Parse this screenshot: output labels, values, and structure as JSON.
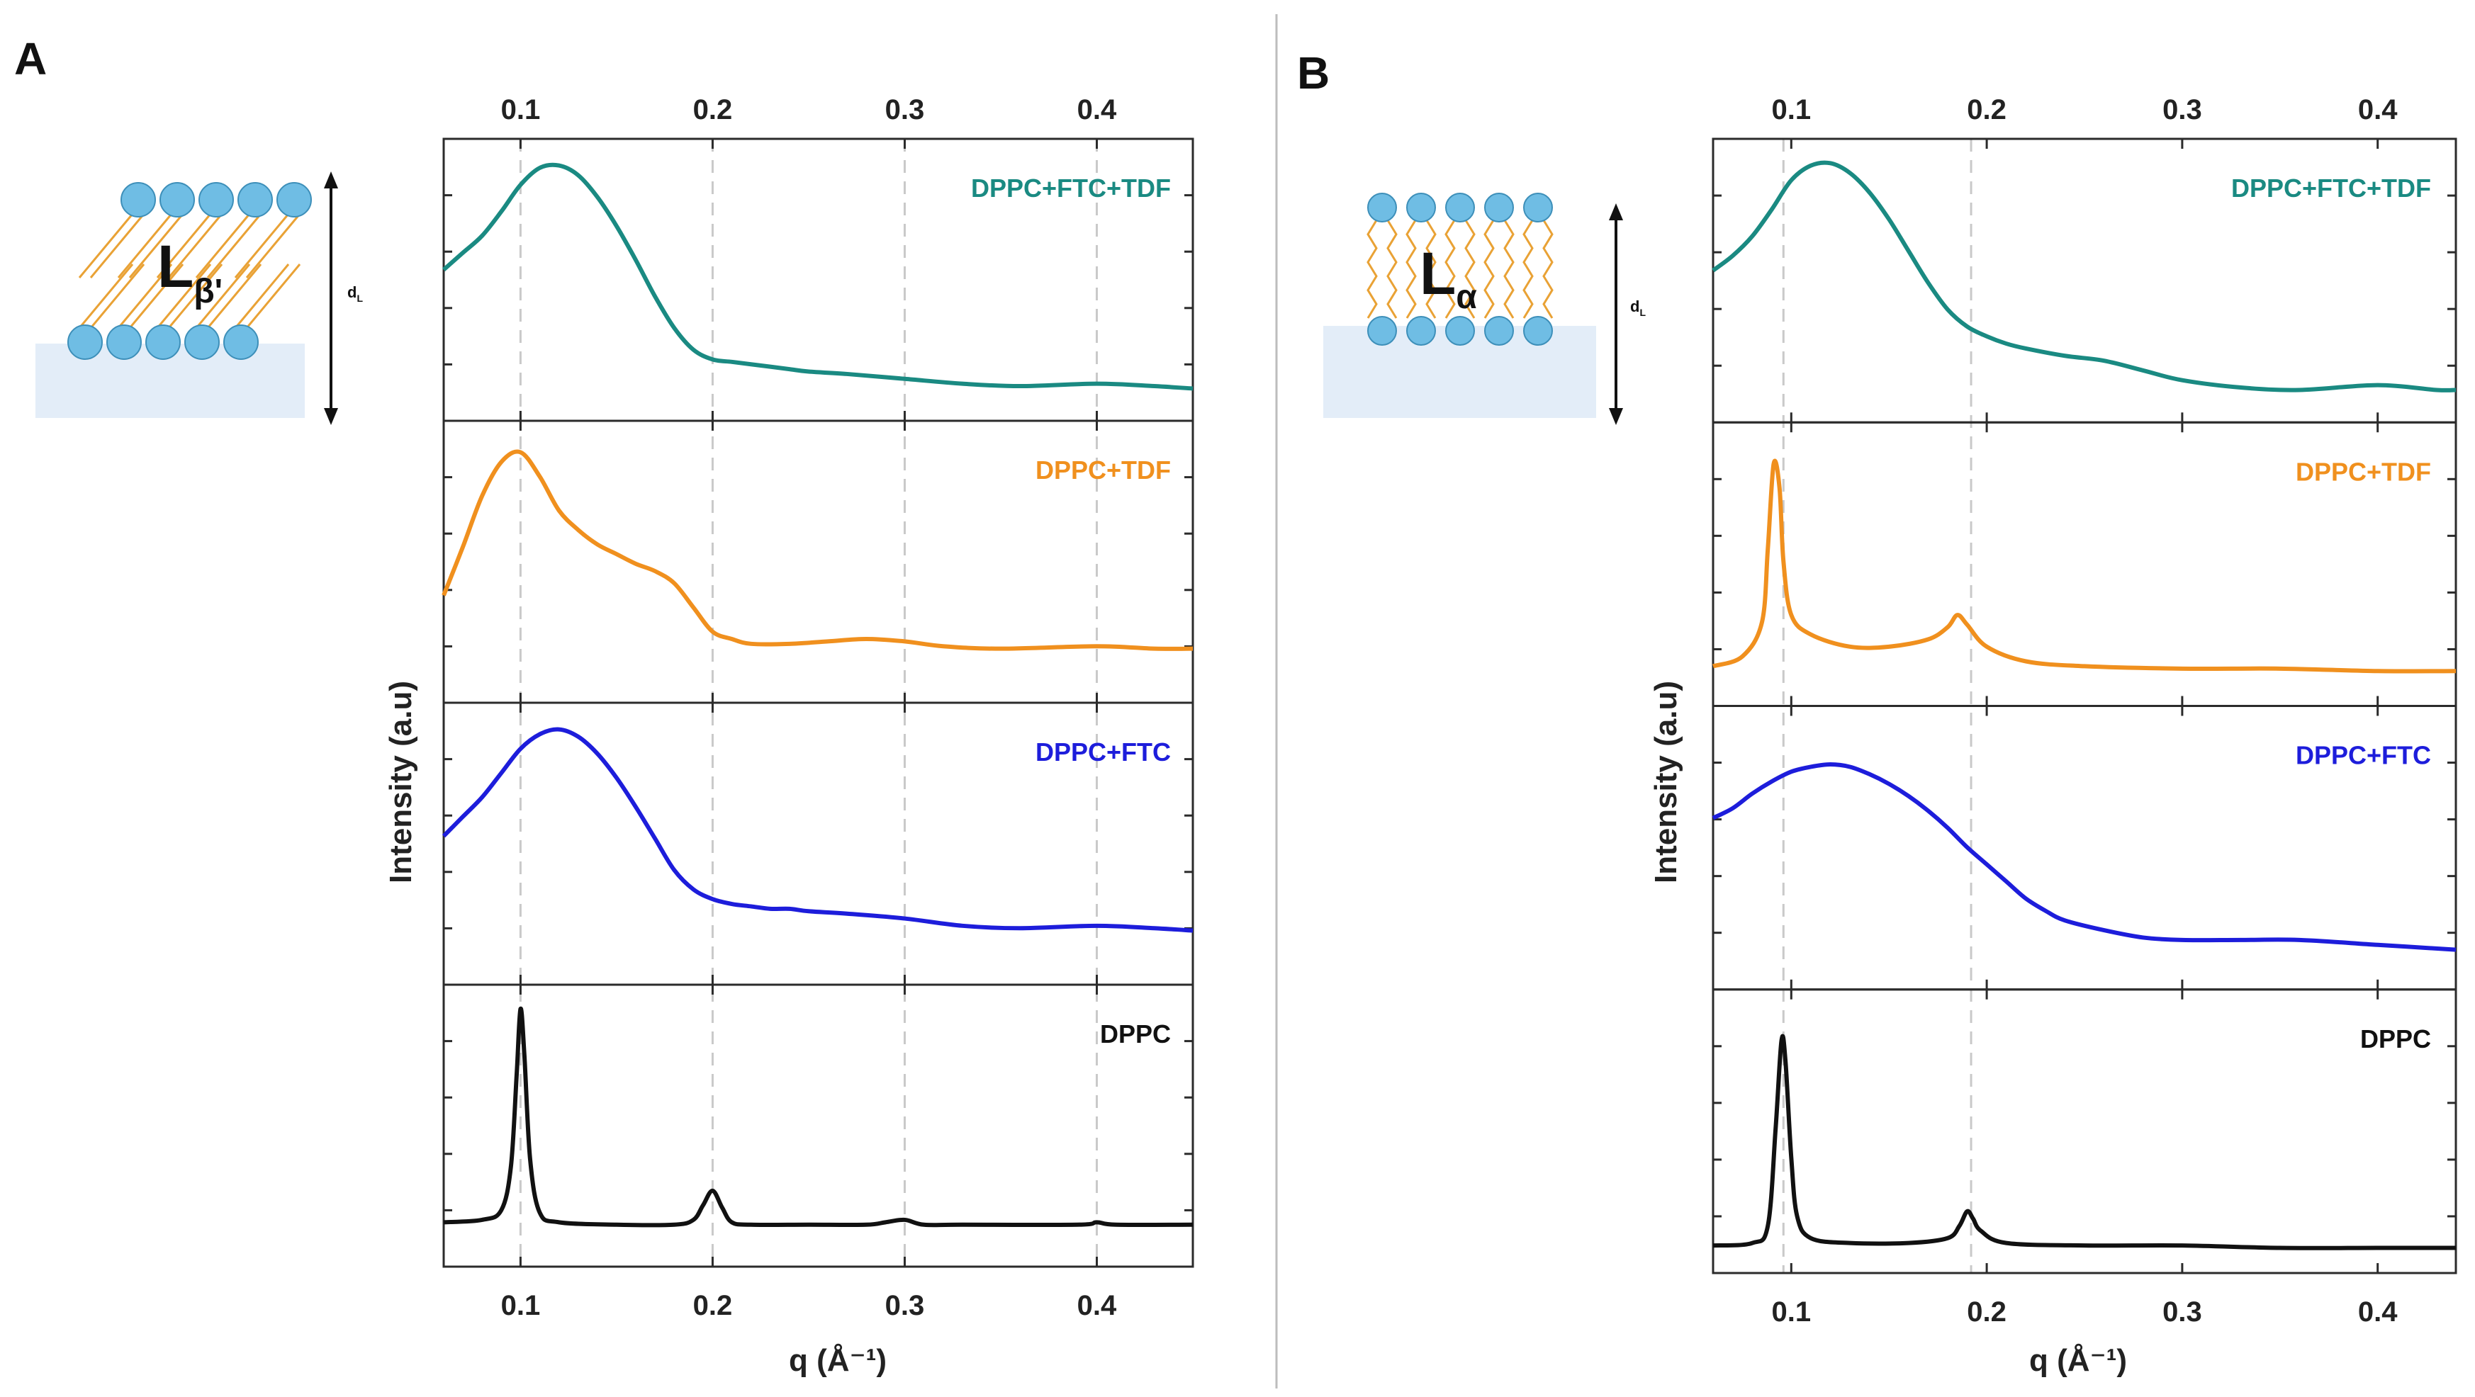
{
  "colors": {
    "teal": "#1a8a82",
    "orange": "#f0901e",
    "blue": "#1d1ddb",
    "black": "#111111",
    "grid": "#c9c9c9",
    "substrate": "#e3edf8",
    "head": "#6fbde4",
    "tail": "#e9a235"
  },
  "divider": true,
  "chart_data": [
    {
      "panel": "A",
      "type": "line",
      "layout": "stacked-offset",
      "xlabel": "q (Å⁻¹)",
      "ylabel": "Intensity (a.u)",
      "xlim": [
        0.06,
        0.45
      ],
      "xticks": [
        0.1,
        0.2,
        0.3,
        0.4
      ],
      "xtick_labels": [
        "0.1",
        "0.2",
        "0.3",
        "0.4"
      ],
      "gridlines_x": [
        0.1,
        0.2,
        0.3,
        0.4
      ],
      "schematic": {
        "phase_main": "L",
        "phase_sub": "β'",
        "spacing_main": "d",
        "spacing_sub": "L"
      },
      "series": [
        {
          "name": "DPPC+FTC+TDF",
          "color": "#1a8a82",
          "ylim": [
            0,
            1
          ],
          "x": [
            0.06,
            0.07,
            0.08,
            0.09,
            0.1,
            0.11,
            0.12,
            0.13,
            0.14,
            0.15,
            0.16,
            0.17,
            0.18,
            0.19,
            0.2,
            0.21,
            0.22,
            0.23,
            0.24,
            0.25,
            0.27,
            0.3,
            0.33,
            0.36,
            0.4,
            0.43,
            0.45
          ],
          "y": [
            0.53,
            0.6,
            0.67,
            0.77,
            0.88,
            0.95,
            0.96,
            0.92,
            0.83,
            0.71,
            0.57,
            0.42,
            0.29,
            0.2,
            0.16,
            0.15,
            0.14,
            0.13,
            0.12,
            0.11,
            0.1,
            0.08,
            0.06,
            0.05,
            0.06,
            0.05,
            0.04
          ]
        },
        {
          "name": "DPPC+TDF",
          "color": "#f0901e",
          "ylim": [
            0,
            1
          ],
          "x": [
            0.06,
            0.07,
            0.08,
            0.09,
            0.1,
            0.11,
            0.12,
            0.13,
            0.14,
            0.15,
            0.16,
            0.17,
            0.18,
            0.19,
            0.2,
            0.21,
            0.22,
            0.24,
            0.26,
            0.28,
            0.3,
            0.32,
            0.35,
            0.4,
            0.43,
            0.45
          ],
          "y": [
            0.35,
            0.55,
            0.76,
            0.9,
            0.94,
            0.84,
            0.7,
            0.62,
            0.56,
            0.52,
            0.48,
            0.45,
            0.4,
            0.3,
            0.2,
            0.17,
            0.15,
            0.15,
            0.16,
            0.17,
            0.16,
            0.14,
            0.13,
            0.14,
            0.13,
            0.13
          ]
        },
        {
          "name": "DPPC+FTC",
          "color": "#1d1ddb",
          "ylim": [
            0,
            1
          ],
          "x": [
            0.06,
            0.07,
            0.08,
            0.09,
            0.1,
            0.11,
            0.12,
            0.13,
            0.14,
            0.15,
            0.16,
            0.17,
            0.18,
            0.19,
            0.2,
            0.21,
            0.22,
            0.23,
            0.24,
            0.25,
            0.27,
            0.3,
            0.33,
            0.36,
            0.4,
            0.43,
            0.45
          ],
          "y": [
            0.52,
            0.6,
            0.68,
            0.78,
            0.88,
            0.94,
            0.96,
            0.93,
            0.86,
            0.76,
            0.64,
            0.51,
            0.38,
            0.3,
            0.26,
            0.24,
            0.23,
            0.22,
            0.22,
            0.21,
            0.2,
            0.18,
            0.15,
            0.14,
            0.15,
            0.14,
            0.13
          ]
        },
        {
          "name": "DPPC",
          "color": "#111111",
          "ylim": [
            0,
            1
          ],
          "x": [
            0.06,
            0.08,
            0.09,
            0.095,
            0.098,
            0.1,
            0.102,
            0.105,
            0.11,
            0.12,
            0.15,
            0.18,
            0.19,
            0.195,
            0.2,
            0.205,
            0.21,
            0.22,
            0.25,
            0.28,
            0.29,
            0.3,
            0.31,
            0.33,
            0.39,
            0.4,
            0.41,
            0.45
          ],
          "y": [
            0.09,
            0.1,
            0.14,
            0.32,
            0.7,
            0.97,
            0.78,
            0.35,
            0.13,
            0.09,
            0.08,
            0.08,
            0.1,
            0.16,
            0.22,
            0.15,
            0.09,
            0.08,
            0.08,
            0.08,
            0.09,
            0.1,
            0.08,
            0.08,
            0.08,
            0.09,
            0.08,
            0.08
          ]
        }
      ]
    },
    {
      "panel": "B",
      "type": "line",
      "layout": "stacked-offset",
      "xlabel": "q (Å⁻¹)",
      "ylabel": "Intensity (a.u)",
      "xlim": [
        0.06,
        0.44
      ],
      "xticks": [
        0.1,
        0.2,
        0.3,
        0.4
      ],
      "xtick_labels": [
        "0.1",
        "0.2",
        "0.3",
        "0.4"
      ],
      "gridlines_x": [
        0.096,
        0.192
      ],
      "schematic": {
        "phase_main": "L",
        "phase_sub": "α",
        "spacing_main": "d",
        "spacing_sub": "L"
      },
      "series": [
        {
          "name": "DPPC+FTC+TDF",
          "color": "#1a8a82",
          "ylim": [
            0,
            1
          ],
          "x": [
            0.06,
            0.07,
            0.08,
            0.09,
            0.1,
            0.11,
            0.12,
            0.13,
            0.14,
            0.15,
            0.16,
            0.17,
            0.18,
            0.19,
            0.2,
            0.21,
            0.22,
            0.24,
            0.26,
            0.28,
            0.3,
            0.33,
            0.36,
            0.4,
            0.43,
            0.44
          ],
          "y": [
            0.53,
            0.59,
            0.67,
            0.78,
            0.9,
            0.96,
            0.97,
            0.93,
            0.85,
            0.74,
            0.61,
            0.48,
            0.37,
            0.3,
            0.26,
            0.23,
            0.21,
            0.18,
            0.16,
            0.12,
            0.08,
            0.05,
            0.04,
            0.06,
            0.04,
            0.04
          ]
        },
        {
          "name": "DPPC+TDF",
          "color": "#f0901e",
          "ylim": [
            0,
            1
          ],
          "x": [
            0.06,
            0.075,
            0.085,
            0.088,
            0.091,
            0.094,
            0.096,
            0.1,
            0.11,
            0.13,
            0.15,
            0.17,
            0.18,
            0.185,
            0.19,
            0.2,
            0.22,
            0.25,
            0.3,
            0.35,
            0.4,
            0.44
          ],
          "y": [
            0.07,
            0.11,
            0.25,
            0.55,
            0.9,
            0.8,
            0.5,
            0.28,
            0.2,
            0.15,
            0.15,
            0.18,
            0.23,
            0.28,
            0.24,
            0.15,
            0.09,
            0.07,
            0.06,
            0.06,
            0.05,
            0.05
          ]
        },
        {
          "name": "DPPC+FTC",
          "color": "#1d1ddb",
          "ylim": [
            0,
            1
          ],
          "x": [
            0.06,
            0.07,
            0.08,
            0.09,
            0.1,
            0.11,
            0.12,
            0.13,
            0.14,
            0.15,
            0.16,
            0.17,
            0.18,
            0.19,
            0.2,
            0.21,
            0.22,
            0.23,
            0.24,
            0.26,
            0.28,
            0.3,
            0.33,
            0.36,
            0.4,
            0.44
          ],
          "y": [
            0.61,
            0.65,
            0.71,
            0.76,
            0.8,
            0.82,
            0.83,
            0.82,
            0.79,
            0.75,
            0.7,
            0.64,
            0.57,
            0.49,
            0.42,
            0.35,
            0.28,
            0.23,
            0.19,
            0.15,
            0.12,
            0.11,
            0.11,
            0.11,
            0.09,
            0.07
          ]
        },
        {
          "name": "DPPC",
          "color": "#111111",
          "ylim": [
            0,
            1
          ],
          "x": [
            0.06,
            0.08,
            0.088,
            0.092,
            0.095,
            0.097,
            0.1,
            0.103,
            0.11,
            0.13,
            0.16,
            0.18,
            0.186,
            0.19,
            0.193,
            0.197,
            0.21,
            0.25,
            0.3,
            0.35,
            0.4,
            0.44
          ],
          "y": [
            0.02,
            0.03,
            0.1,
            0.5,
            0.86,
            0.78,
            0.38,
            0.14,
            0.05,
            0.03,
            0.03,
            0.05,
            0.1,
            0.16,
            0.13,
            0.08,
            0.03,
            0.02,
            0.02,
            0.01,
            0.01,
            0.01
          ]
        }
      ]
    }
  ]
}
